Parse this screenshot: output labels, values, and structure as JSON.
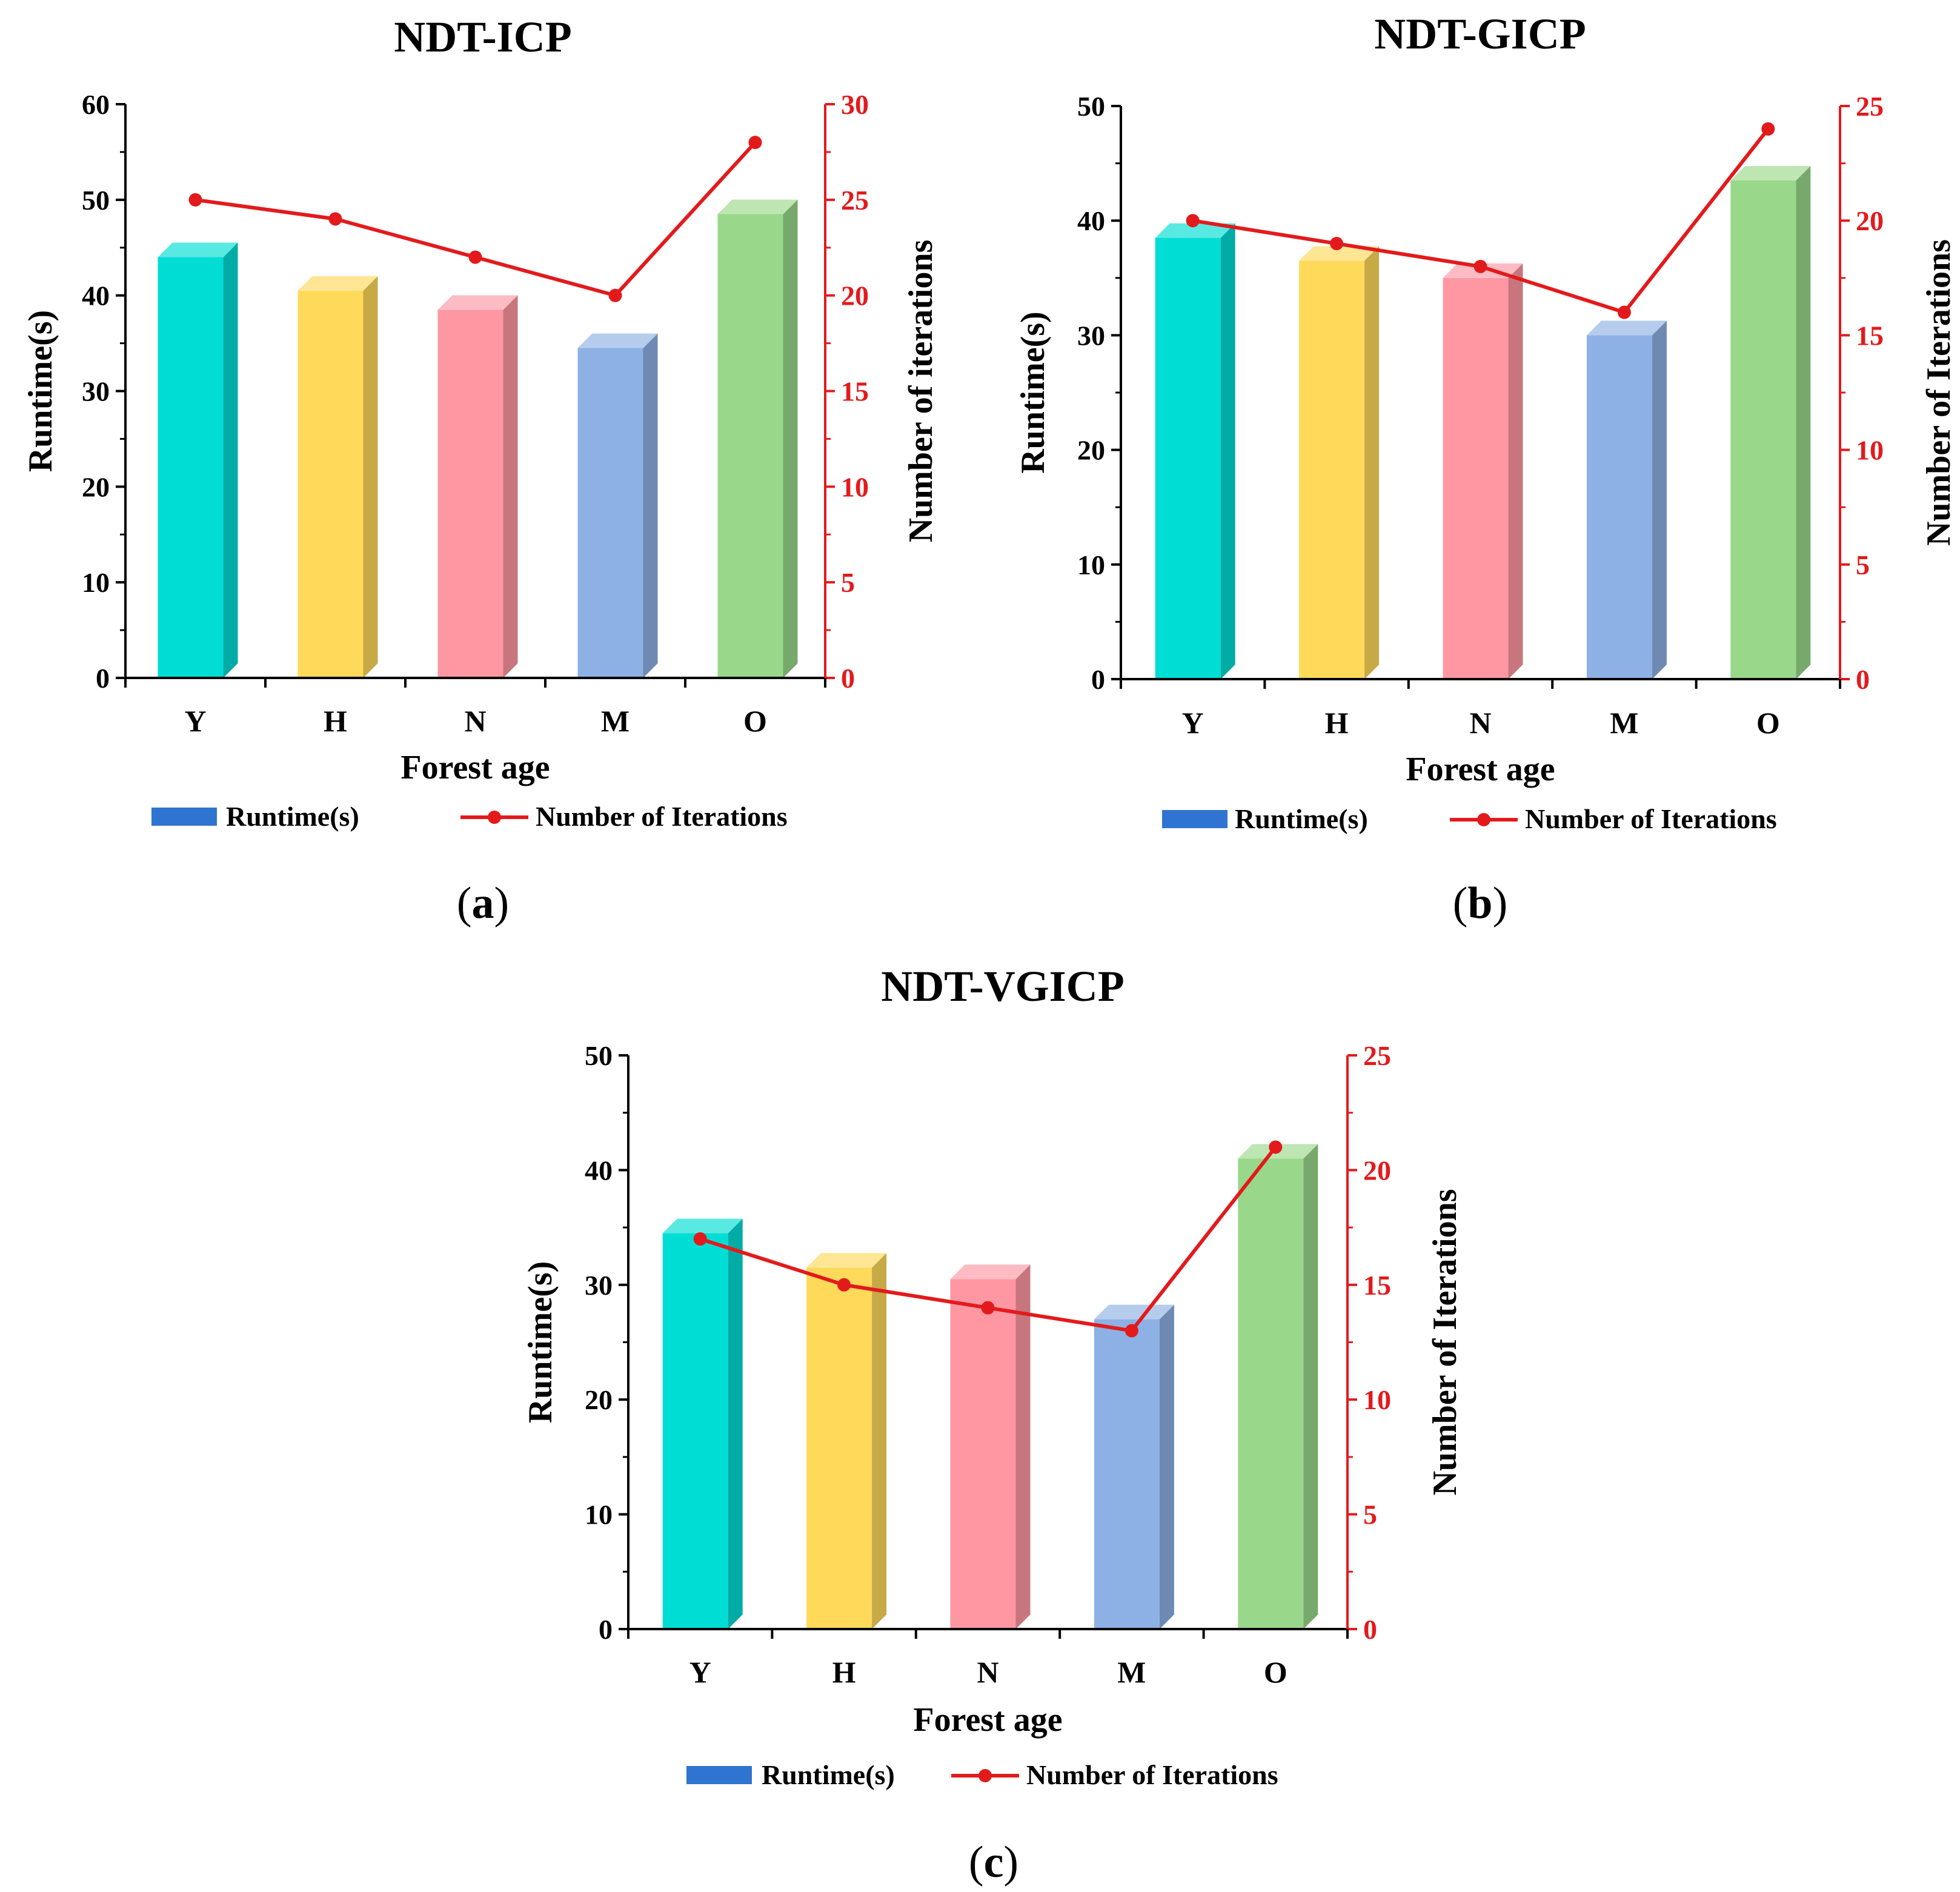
{
  "colors": {
    "line": "#e31a1c",
    "axis": "#000000",
    "legend_swatch": "#2f74d0",
    "bars": [
      "#00ddd4",
      "#ffd95a",
      "#ff97a2",
      "#8db1e4",
      "#99d88a"
    ]
  },
  "legend": {
    "bar_label": "Runtime(s)",
    "line_label": "Number of Iterations"
  },
  "chart_data": [
    {
      "type": "bar",
      "title": "NDT-ICP",
      "caption_letter": "a",
      "categories": [
        "Y",
        "H",
        "N",
        "M",
        "O"
      ],
      "xlabel": "Forest age",
      "ylabel": "Runtime(s)",
      "y2label": "Number of iterations",
      "ylim": [
        0,
        60
      ],
      "yticks": [
        0,
        10,
        20,
        30,
        40,
        50,
        60
      ],
      "y2lim": [
        0,
        30
      ],
      "y2ticks": [
        0,
        5,
        10,
        15,
        20,
        25,
        30
      ],
      "series": [
        {
          "name": "Runtime(s)",
          "type": "bar",
          "axis": "left",
          "values": [
            44,
            40.5,
            38.5,
            34.5,
            48.5
          ]
        },
        {
          "name": "Number of Iterations",
          "type": "line",
          "axis": "right",
          "values": [
            25,
            24,
            22,
            20,
            28
          ]
        }
      ]
    },
    {
      "type": "bar",
      "title": "NDT-GICP",
      "caption_letter": "b",
      "categories": [
        "Y",
        "H",
        "N",
        "M",
        "O"
      ],
      "xlabel": "Forest age",
      "ylabel": "Runtime(s)",
      "y2label": "Number of Iterations",
      "ylim": [
        0,
        50
      ],
      "yticks": [
        0,
        10,
        20,
        30,
        40,
        50
      ],
      "y2lim": [
        0,
        25
      ],
      "y2ticks": [
        0,
        5,
        10,
        15,
        20,
        25
      ],
      "series": [
        {
          "name": "Runtime(s)",
          "type": "bar",
          "axis": "left",
          "values": [
            38.5,
            36.5,
            35,
            30,
            43.5
          ]
        },
        {
          "name": "Number of Iterations",
          "type": "line",
          "axis": "right",
          "values": [
            20,
            19,
            18,
            16,
            24
          ]
        }
      ]
    },
    {
      "type": "bar",
      "title": "NDT-VGICP",
      "caption_letter": "c",
      "categories": [
        "Y",
        "H",
        "N",
        "M",
        "O"
      ],
      "xlabel": "Forest age",
      "ylabel": "Runtime(s)",
      "y2label": "Number of Iterations",
      "ylim": [
        0,
        50
      ],
      "yticks": [
        0,
        10,
        20,
        30,
        40,
        50
      ],
      "y2lim": [
        0,
        25
      ],
      "y2ticks": [
        0,
        5,
        10,
        15,
        20,
        25
      ],
      "series": [
        {
          "name": "Runtime(s)",
          "type": "bar",
          "axis": "left",
          "values": [
            34.5,
            31.5,
            30.5,
            27,
            41
          ]
        },
        {
          "name": "Number of Iterations",
          "type": "line",
          "axis": "right",
          "values": [
            17,
            15,
            14,
            13,
            21
          ]
        }
      ]
    }
  ]
}
